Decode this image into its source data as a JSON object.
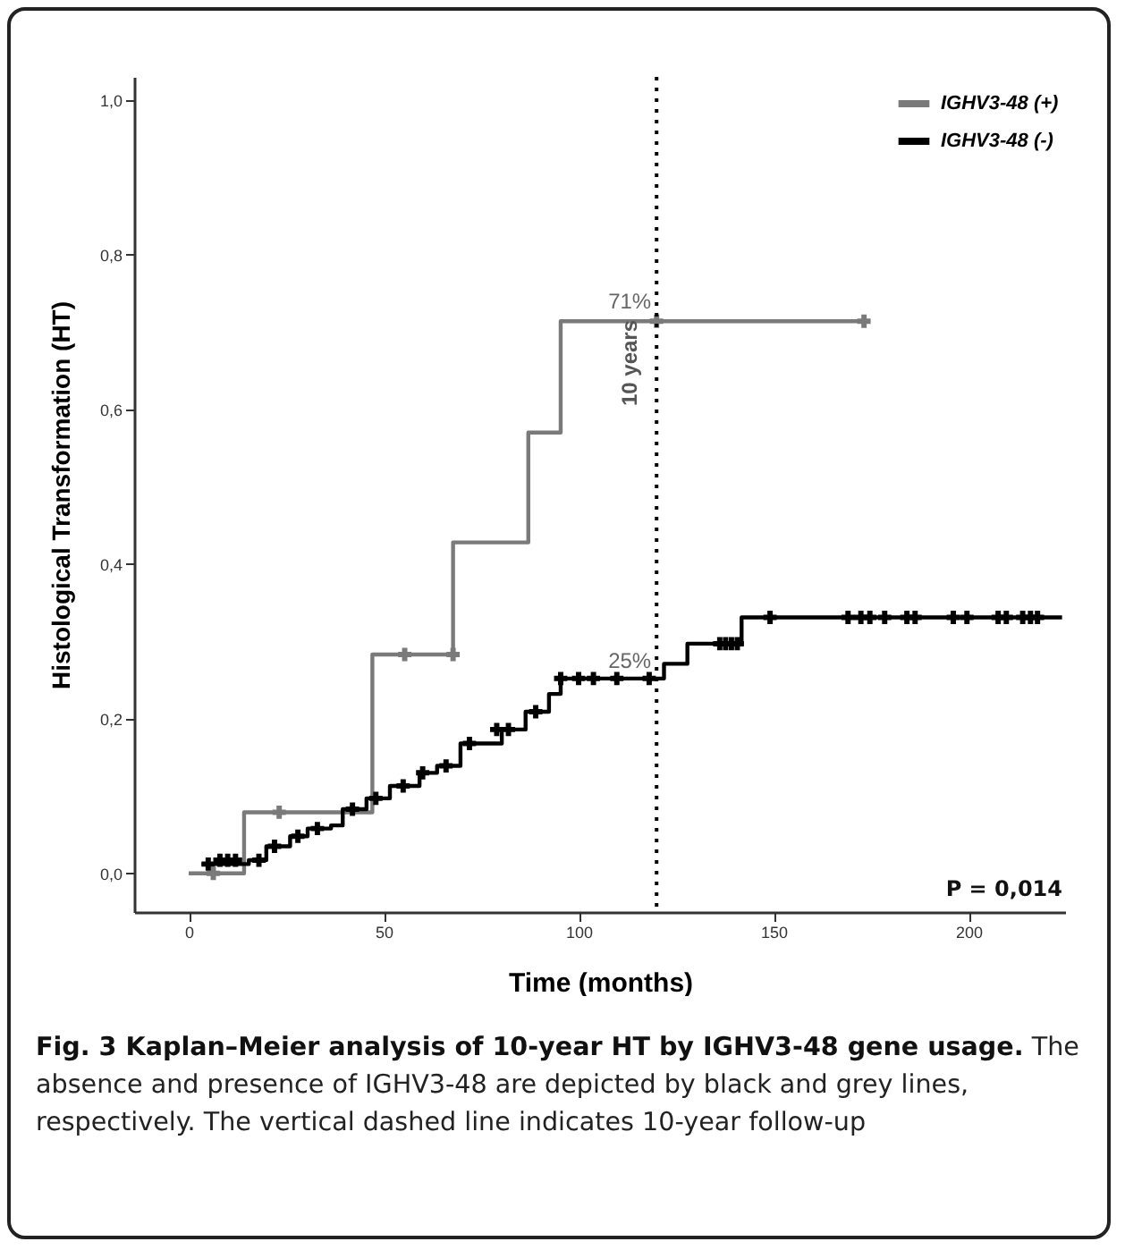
{
  "chart_data": {
    "type": "step",
    "xlabel": "Time (months)",
    "ylabel": "Histological Transformation (HT)",
    "xlim": [
      -14,
      225
    ],
    "xticks": [
      0,
      50,
      100,
      150,
      200
    ],
    "ylim": [
      -0.05,
      1.03
    ],
    "yticks": [
      {
        "value": 0,
        "label": "0,0"
      },
      {
        "value": 0.2,
        "label": "0,2"
      },
      {
        "value": 0.4,
        "label": "0,4"
      },
      {
        "value": 0.6,
        "label": "0,6"
      },
      {
        "value": 0.8,
        "label": "0,8"
      },
      {
        "value": 1,
        "label": "1,0"
      }
    ],
    "grid": false,
    "legend": "top right",
    "series": [
      {
        "name": "IGHV3-48 (+)",
        "color": "#7a7a7a",
        "x": [
          0,
          14.2,
          47.1,
          67.8,
          87.1,
          95.4,
          173.2
        ],
        "values": [
          0,
          0.079,
          0.283,
          0.428,
          0.57,
          0.714,
          0.714
        ]
      },
      {
        "name": "IGHV3-48 (-)",
        "color": "#000000",
        "x": [
          3.3,
          15.4,
          19.9,
          26,
          30.5,
          36.5,
          39.5,
          45.6,
          51.6,
          59.2,
          63.7,
          69.7,
          75.8,
          80.3,
          86.4,
          92.4,
          95.4,
          121.9,
          127.9,
          141.8,
          224
        ],
        "values": [
          0.012,
          0.017,
          0.035,
          0.048,
          0.058,
          0.062,
          0.083,
          0.097,
          0.113,
          0.13,
          0.139,
          0.168,
          0.168,
          0.186,
          0.209,
          0.232,
          0.252,
          0.271,
          0.297,
          0.331,
          0.331
        ]
      },
      {
        "type": "scatter",
        "marker": "cross",
        "color": "#7a7a7a",
        "x": [
          6.3,
          23.2,
          55.4,
          67.8,
          120,
          173.2
        ],
        "values": [
          0,
          0.079,
          0.283,
          0.283,
          0.714,
          0.714
        ]
      },
      {
        "type": "scatter",
        "marker": "cross",
        "color": "#000000",
        "x": [
          5,
          8,
          10,
          12,
          18,
          22,
          28,
          33,
          42,
          48,
          55,
          60,
          66,
          72,
          79,
          82,
          89,
          95.4,
          100,
          103.8,
          109.8,
          118.1,
          136.2,
          137.7,
          139.2,
          140.7,
          149.1,
          169.1,
          172.4,
          174.7,
          178.5,
          184.2,
          186.3,
          196.1,
          199.6,
          207.6,
          209.7,
          213.9,
          215.9,
          217.7
        ],
        "values": [
          0.012,
          0.017,
          0.017,
          0.017,
          0.017,
          0.035,
          0.048,
          0.058,
          0.083,
          0.097,
          0.113,
          0.13,
          0.139,
          0.168,
          0.186,
          0.186,
          0.209,
          0.252,
          0.252,
          0.252,
          0.252,
          0.252,
          0.297,
          0.297,
          0.297,
          0.297,
          0.331,
          0.331,
          0.331,
          0.331,
          0.331,
          0.331,
          0.331,
          0.331,
          0.331,
          0.331,
          0.331,
          0.331,
          0.331,
          0.331
        ]
      }
    ],
    "ref_lines": [
      {
        "axis": "x",
        "value": 120,
        "label": "10 years",
        "line_style": "dotted",
        "color": "#000000"
      }
    ],
    "annotations": [
      {
        "text": "71%",
        "x": 120,
        "y": 0.714
      },
      {
        "text": "25%",
        "x": 120,
        "y": 0.25
      },
      "P = 0,014",
      "Fig. 3 Kaplan–Meier analysis of 10-year HT by IGHV3-48 gene usage.",
      "The absence and presence of IGHV3-48 are depicted by black and grey lines, respectively. The vertical dashed line indicates 10-year follow-up"
    ]
  }
}
